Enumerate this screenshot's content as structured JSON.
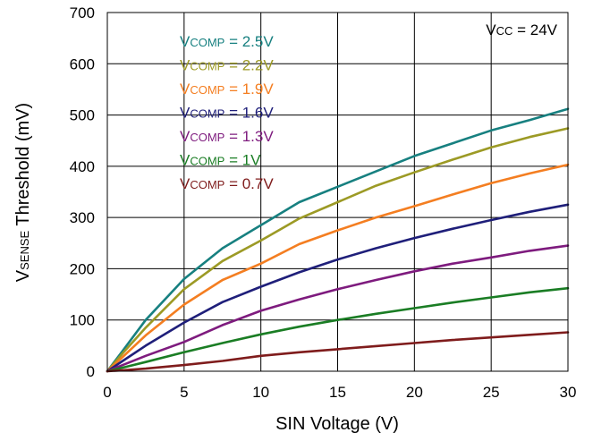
{
  "chart_data": {
    "type": "line",
    "xlabel": "SIN Voltage (V)",
    "ylabel_main": "V",
    "ylabel_sub": "SENSE",
    "ylabel_rest": " Threshold (mV)",
    "xlim": [
      0,
      30
    ],
    "ylim": [
      0,
      700
    ],
    "xticks": [
      0,
      5,
      10,
      15,
      20,
      25,
      30
    ],
    "yticks": [
      0,
      100,
      200,
      300,
      400,
      500,
      600,
      700
    ],
    "grid": true,
    "annotation": {
      "main": "V",
      "sub": "CC",
      "rest": " = 24V"
    },
    "series": [
      {
        "name_main": "V",
        "name_sub": "COMP",
        "name_rest": " = 2.5V",
        "color": "#178080",
        "x": [
          0,
          1,
          2.5,
          5,
          7.5,
          10,
          12.5,
          15,
          17.5,
          20,
          22.5,
          25,
          27.5,
          30
        ],
        "y": [
          0,
          40,
          100,
          180,
          240,
          285,
          330,
          360,
          390,
          420,
          445,
          470,
          490,
          512
        ]
      },
      {
        "name_main": "V",
        "name_sub": "COMP",
        "name_rest": " = 2.2V",
        "color": "#9c9a25",
        "x": [
          0,
          1,
          2.5,
          5,
          7.5,
          10,
          12.5,
          15,
          17.5,
          20,
          22.5,
          25,
          27.5,
          30
        ],
        "y": [
          0,
          35,
          85,
          160,
          215,
          255,
          298,
          330,
          362,
          388,
          413,
          437,
          457,
          474
        ]
      },
      {
        "name_main": "V",
        "name_sub": "COMP",
        "name_rest": " = 1.9V",
        "color": "#f47e21",
        "x": [
          0,
          1,
          2.5,
          5,
          7.5,
          10,
          12.5,
          15,
          17.5,
          20,
          22.5,
          25,
          27.5,
          30
        ],
        "y": [
          0,
          28,
          70,
          130,
          178,
          210,
          248,
          275,
          300,
          322,
          345,
          367,
          386,
          403
        ]
      },
      {
        "name_main": "V",
        "name_sub": "COMP",
        "name_rest": " = 1.6V",
        "color": "#1f1f7a",
        "x": [
          0,
          1,
          2.5,
          5,
          7.5,
          10,
          12.5,
          15,
          17.5,
          20,
          22.5,
          25,
          27.5,
          30
        ],
        "y": [
          0,
          20,
          50,
          95,
          135,
          165,
          193,
          218,
          240,
          260,
          278,
          295,
          311,
          325
        ]
      },
      {
        "name_main": "V",
        "name_sub": "COMP",
        "name_rest": " = 1.3V",
        "color": "#7e1b7e",
        "x": [
          0,
          1,
          2.5,
          5,
          7.5,
          10,
          12.5,
          15,
          17.5,
          20,
          22.5,
          25,
          27.5,
          30
        ],
        "y": [
          0,
          12,
          30,
          57,
          90,
          118,
          140,
          160,
          178,
          195,
          210,
          222,
          235,
          245
        ]
      },
      {
        "name_main": "V",
        "name_sub": "COMP",
        "name_rest": " = 1V",
        "color": "#1a7d24",
        "x": [
          0,
          1,
          2.5,
          5,
          7.5,
          10,
          12.5,
          15,
          17.5,
          20,
          22.5,
          25,
          27.5,
          30
        ],
        "y": [
          0,
          7,
          18,
          37,
          55,
          72,
          87,
          100,
          112,
          123,
          134,
          144,
          154,
          162
        ]
      },
      {
        "name_main": "V",
        "name_sub": "COMP",
        "name_rest": " = 0.7V",
        "color": "#7f1c1c",
        "x": [
          0,
          1,
          2.5,
          5,
          7.5,
          10,
          12.5,
          15,
          17.5,
          20,
          22.5,
          25,
          27.5,
          30
        ],
        "y": [
          0,
          2,
          5,
          12,
          20,
          30,
          37,
          43,
          49,
          55,
          61,
          66,
          71,
          76
        ]
      }
    ]
  }
}
